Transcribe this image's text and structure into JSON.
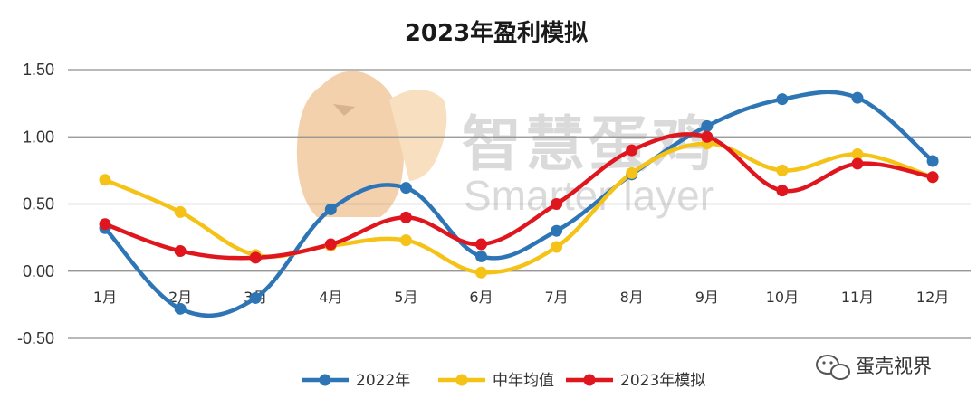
{
  "chart_data": {
    "type": "line",
    "title": "2023年盈利模拟",
    "categories": [
      "1月",
      "2月",
      "3月",
      "4月",
      "5月",
      "6月",
      "7月",
      "8月",
      "9月",
      "10月",
      "11月",
      "12月"
    ],
    "yticks": [
      "1.50",
      "1.00",
      "0.50",
      "0.00",
      "-0.50"
    ],
    "ylim": [
      -0.5,
      1.5
    ],
    "grid": true,
    "legend_position": "bottom",
    "series": [
      {
        "name": "2022年",
        "color": "#2E75B6",
        "values": [
          0.32,
          -0.28,
          -0.2,
          0.46,
          0.62,
          0.11,
          0.3,
          0.72,
          1.08,
          1.28,
          1.29,
          0.82
        ]
      },
      {
        "name": "中年均值",
        "color": "#F5C218",
        "values": [
          0.68,
          0.44,
          0.12,
          0.19,
          0.23,
          -0.01,
          0.18,
          0.73,
          0.95,
          0.75,
          0.87,
          0.7
        ]
      },
      {
        "name": "2023年模拟",
        "color": "#E0161E",
        "values": [
          0.35,
          0.15,
          0.1,
          0.2,
          0.4,
          0.2,
          0.5,
          0.9,
          1.0,
          0.6,
          0.8,
          0.7
        ]
      }
    ]
  },
  "watermark": {
    "cn": "智慧蛋鸡",
    "en": "Smarter layer"
  },
  "credit": {
    "text": "蛋壳视界",
    "icon": "wechat-icon"
  }
}
